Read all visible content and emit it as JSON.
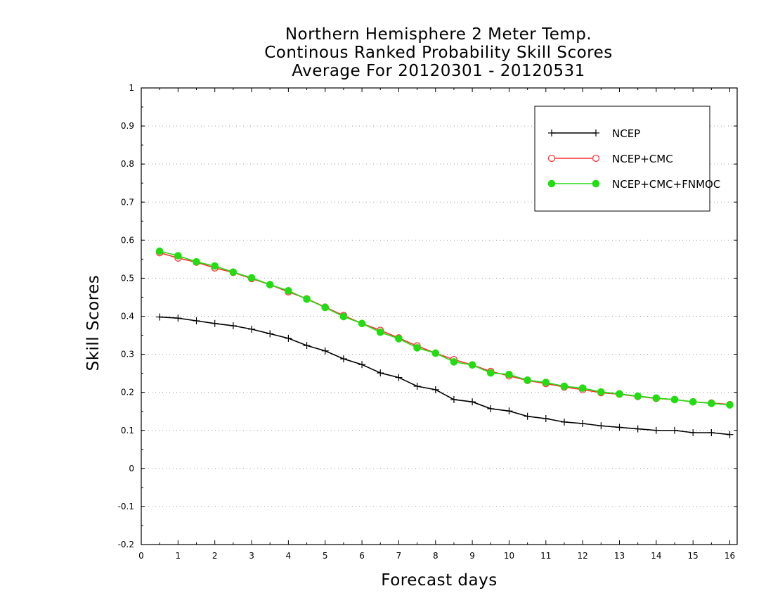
{
  "chart_data": {
    "type": "line",
    "title_lines": [
      "Northern Hemisphere 2 Meter Temp.",
      "Continous Ranked Probability Skill Scores",
      "Average For 20120301 - 20120531"
    ],
    "xlabel": "Forecast days",
    "ylabel": "Skill Scores",
    "xlim": [
      0,
      16.2
    ],
    "ylim": [
      -0.2,
      1
    ],
    "x_ticks": [
      "0",
      "1",
      "2",
      "3",
      "4",
      "5",
      "6",
      "7",
      "8",
      "9",
      "10",
      "11",
      "12",
      "13",
      "14",
      "15",
      "16"
    ],
    "y_ticks": [
      "1",
      "0.9",
      "0.8",
      "0.7",
      "0.6",
      "0.5",
      "0.4",
      "0.3",
      "0.2",
      "0.1",
      "0",
      "-0.1",
      "-0.2"
    ],
    "grid": "horizontal dotted",
    "legend_position": "top-right",
    "x": [
      0.5,
      1,
      1.5,
      2,
      2.5,
      3,
      3.5,
      4,
      4.5,
      5,
      5.5,
      6,
      6.5,
      7,
      7.5,
      8,
      8.5,
      9,
      9.5,
      10,
      10.5,
      11,
      11.5,
      12,
      12.5,
      13,
      13.5,
      14,
      14.5,
      15,
      15.5,
      16
    ],
    "series": [
      {
        "name": "NCEP",
        "color": "#000000",
        "marker": "plus",
        "values": [
          0.398,
          0.395,
          0.388,
          0.381,
          0.375,
          0.366,
          0.354,
          0.342,
          0.323,
          0.309,
          0.288,
          0.273,
          0.251,
          0.239,
          0.216,
          0.207,
          0.181,
          0.175,
          0.157,
          0.151,
          0.137,
          0.131,
          0.122,
          0.118,
          0.112,
          0.108,
          0.104,
          0.1,
          0.1,
          0.094,
          0.094,
          0.089
        ]
      },
      {
        "name": "NCEP+CMC",
        "color": "#ff3333",
        "marker": "open-circle",
        "values": [
          0.567,
          0.553,
          0.542,
          0.527,
          0.515,
          0.499,
          0.483,
          0.464,
          0.446,
          0.424,
          0.402,
          0.381,
          0.363,
          0.343,
          0.322,
          0.303,
          0.286,
          0.272,
          0.255,
          0.243,
          0.231,
          0.223,
          0.214,
          0.207,
          0.199,
          0.195,
          0.189,
          0.184,
          0.181,
          0.175,
          0.172,
          0.168
        ]
      },
      {
        "name": "NCEP+CMC+FNMOC",
        "color": "#22dd11",
        "marker": "filled-circle",
        "values": [
          0.571,
          0.559,
          0.543,
          0.532,
          0.516,
          0.501,
          0.483,
          0.467,
          0.445,
          0.423,
          0.399,
          0.381,
          0.358,
          0.341,
          0.317,
          0.303,
          0.28,
          0.272,
          0.251,
          0.247,
          0.232,
          0.226,
          0.216,
          0.211,
          0.201,
          0.196,
          0.19,
          0.185,
          0.181,
          0.175,
          0.171,
          0.167
        ]
      }
    ]
  }
}
